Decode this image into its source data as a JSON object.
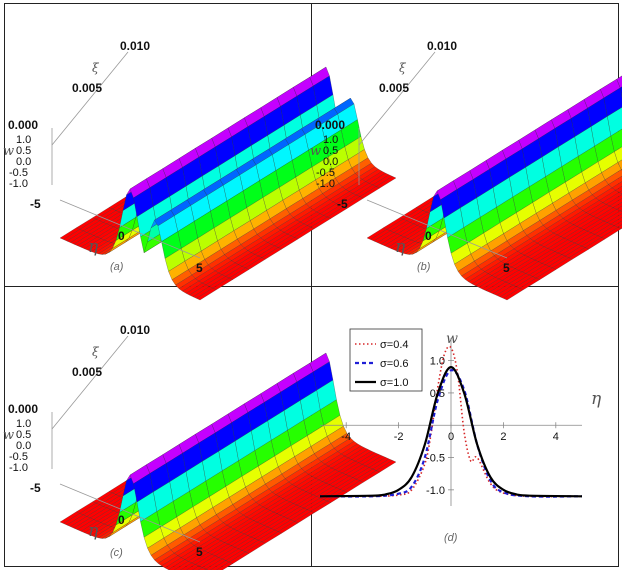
{
  "panels_3d": [
    {
      "caption": "(a)",
      "xi_ticks": [
        "0.000",
        "0.005",
        "0.010"
      ],
      "xi_label": "ξ",
      "w_ticks": [
        "1.0",
        "0.5",
        "0.0",
        "-0.5",
        "-1.0"
      ],
      "w_label": "w",
      "eta_ticks": [
        "-5",
        "0",
        "5"
      ],
      "eta_label": "η",
      "surface": {
        "baseline": -1.05,
        "peak": 0.95,
        "secondary_peak": 0.45
      }
    },
    {
      "caption": "(b)",
      "xi_ticks": [
        "0.000",
        "0.005",
        "0.010"
      ],
      "xi_label": "ξ",
      "w_ticks": [
        "1.0",
        "0.5",
        "0.0",
        "-0.5",
        "-1.0"
      ],
      "w_label": "w",
      "eta_ticks": [
        "-5",
        "0",
        "5"
      ],
      "eta_label": "η",
      "surface": {
        "baseline": -1.05,
        "peak": 0.9,
        "secondary_peak": 0
      }
    },
    {
      "caption": "(c)",
      "xi_ticks": [
        "0.000",
        "0.005",
        "0.010"
      ],
      "xi_label": "ξ",
      "w_ticks": [
        "1.0",
        "0.5",
        "0.0",
        "-0.5",
        "-1.0"
      ],
      "w_label": "w",
      "eta_ticks": [
        "-5",
        "0",
        "5"
      ],
      "eta_label": "η",
      "surface": {
        "baseline": -1.05,
        "peak": 0.9,
        "secondary_peak": 0
      }
    }
  ],
  "chart_data": {
    "type": "line",
    "caption": "(d)",
    "xlabel": "η",
    "ylabel": "w",
    "xlim": [
      -5,
      5
    ],
    "ylim": [
      -1.25,
      1.35
    ],
    "xticks": [
      -4,
      -2,
      0,
      2,
      4
    ],
    "yticks": [
      1.0,
      0.5,
      -0.5,
      -1.0
    ],
    "legend_position": "top-left",
    "series": [
      {
        "name": "σ=0.4",
        "color": "#d62728",
        "style": "dotted",
        "x": [
          -5,
          -3,
          -2,
          -1.5,
          -1,
          -0.75,
          -0.5,
          -0.25,
          0,
          0.25,
          0.5,
          0.75,
          1,
          1.5,
          2,
          3,
          5
        ],
        "y": [
          -1.1,
          -1.1,
          -1.08,
          -1.0,
          -0.6,
          -0.1,
          0.6,
          1.1,
          1.2,
          0.8,
          -0.1,
          -0.55,
          -0.5,
          -0.9,
          -1.05,
          -1.1,
          -1.1
        ]
      },
      {
        "name": "σ=0.6",
        "color": "#1f1fd6",
        "style": "dashed",
        "x": [
          -5,
          -3,
          -2,
          -1.5,
          -1,
          -0.5,
          0,
          0.5,
          1,
          1.5,
          2,
          3,
          5
        ],
        "y": [
          -1.1,
          -1.1,
          -1.06,
          -0.95,
          -0.5,
          0.4,
          0.85,
          0.55,
          -0.3,
          -0.85,
          -1.04,
          -1.1,
          -1.1
        ]
      },
      {
        "name": "σ=1.0",
        "color": "#000000",
        "style": "solid",
        "x": [
          -5,
          -3,
          -2.5,
          -2,
          -1.5,
          -1,
          -0.5,
          0,
          0.5,
          1,
          1.5,
          2,
          2.5,
          3,
          5
        ],
        "y": [
          -1.1,
          -1.09,
          -1.07,
          -1.0,
          -0.8,
          -0.3,
          0.5,
          0.9,
          0.5,
          -0.3,
          -0.8,
          -1.0,
          -1.07,
          -1.09,
          -1.1
        ]
      }
    ]
  },
  "colors": {
    "border": "#222222",
    "surface_edge": "#333333"
  }
}
